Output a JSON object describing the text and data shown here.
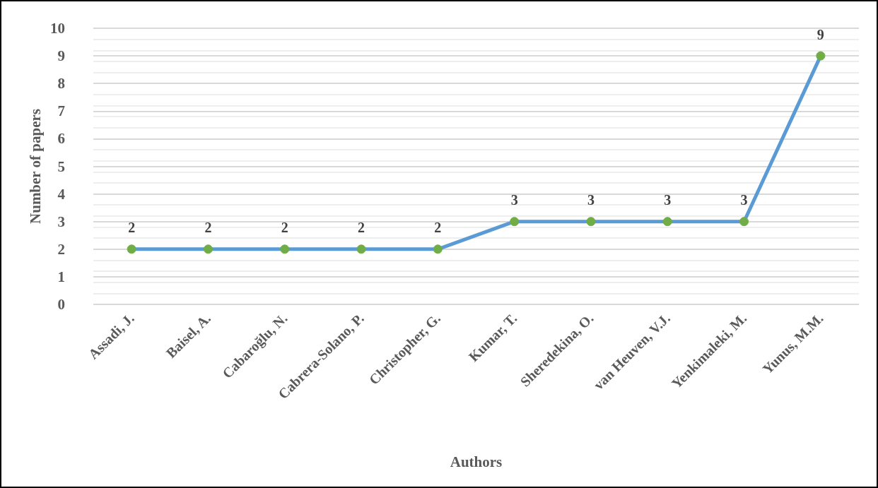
{
  "chart_data": {
    "type": "line",
    "xlabel": "Authors",
    "ylabel": "Number of papers",
    "categories": [
      "Assadi, J.",
      "Baisel, A.",
      "Cabaroğlu, N.",
      "Cabrera-Solano, P.",
      "Christopher, G.",
      "Kumar, T.",
      "Sheredekina, O.",
      "van Heuven, V.J.",
      "Yenkimaleki, M.",
      "Yunus, M.M."
    ],
    "series": [
      {
        "color": "#5b9bd5",
        "colors": [
          "#70ad47",
          "#70ad47",
          "#70ad47",
          "#70ad47",
          "#70ad47",
          "#70ad47",
          "#70ad47",
          "#70ad47",
          "#70ad47",
          "#70ad47"
        ],
        "values": [
          2,
          2,
          2,
          2,
          2,
          3,
          3,
          3,
          3,
          9
        ]
      }
    ],
    "ylim": [
      0,
      10
    ],
    "yticks": [
      0,
      1,
      2,
      3,
      4,
      5,
      6,
      7,
      8,
      9,
      10
    ],
    "grid": "y",
    "marker": "circle",
    "line_style": "solid",
    "data_labels": true
  }
}
